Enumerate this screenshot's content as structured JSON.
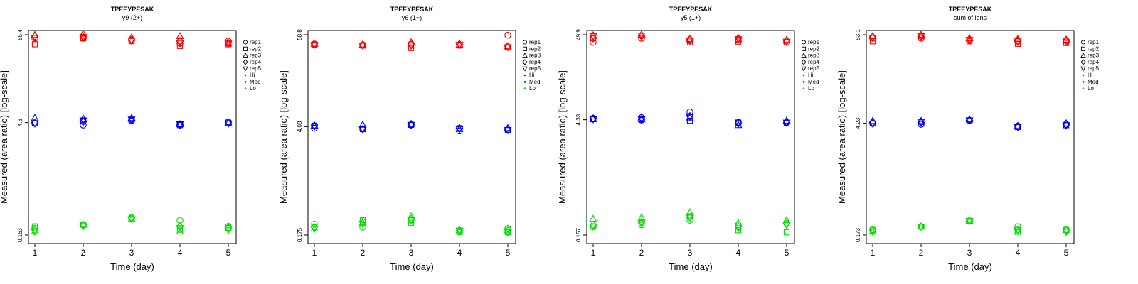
{
  "chart_data": [
    {
      "type": "scatter",
      "title": "TPEEYPESAK",
      "subtitle": "y9 (2+)",
      "xlabel": "Time (day)",
      "ylabel": "Measured (area ratio) [log-scale]",
      "y_scale": "log",
      "x_ticks": [
        "1",
        "2",
        "3",
        "4",
        "5"
      ],
      "y_ticks": [
        "0.163",
        "4.3",
        "55.4"
      ],
      "ylim": [
        0.163,
        55.4
      ],
      "groups": {
        "Hi": {
          "rep1": [
            50,
            50,
            47,
            43,
            46
          ],
          "rep2": [
            42,
            50,
            46,
            40,
            42
          ],
          "rep3": [
            55,
            57,
            51,
            53,
            43
          ],
          "rep4": [
            53,
            52,
            48,
            46,
            44
          ],
          "rep5": [
            51,
            52,
            47,
            44,
            43
          ]
        },
        "Med": {
          "rep1": [
            4.2,
            4.0,
            4.5,
            4.1,
            4.4
          ],
          "rep2": [
            4.2,
            4.5,
            4.8,
            4.0,
            4.2
          ],
          "rep3": [
            4.9,
            4.8,
            4.9,
            4.1,
            4.3
          ],
          "rep4": [
            4.3,
            4.4,
            4.6,
            4.0,
            4.3
          ],
          "rep5": [
            4.2,
            4.6,
            4.7,
            4.1,
            4.2
          ]
        },
        "Lo": {
          "rep1": [
            0.2,
            0.22,
            0.27,
            0.25,
            0.21
          ],
          "rep2": [
            0.21,
            0.22,
            0.26,
            0.19,
            0.2
          ],
          "rep3": [
            0.18,
            0.22,
            0.26,
            0.18,
            0.21
          ],
          "rep4": [
            0.19,
            0.22,
            0.27,
            0.21,
            0.2
          ],
          "rep5": [
            0.18,
            0.21,
            0.26,
            0.2,
            0.19
          ]
        }
      }
    },
    {
      "type": "scatter",
      "title": "TPEEYPESAK",
      "subtitle": "y6 (1+)",
      "xlabel": "Time (day)",
      "ylabel": "Measured (area ratio) [log-scale]",
      "y_scale": "log",
      "x_ticks": [
        "1",
        "2",
        "3",
        "4",
        "5"
      ],
      "y_ticks": [
        "0.175",
        "4.08",
        "58.8"
      ],
      "ylim": [
        0.175,
        58.8
      ],
      "groups": {
        "Hi": {
          "rep1": [
            45,
            44,
            45,
            44,
            58
          ],
          "rep2": [
            44,
            43,
            40,
            43,
            41
          ],
          "rep3": [
            45,
            44,
            47,
            44,
            42
          ],
          "rep4": [
            45,
            44,
            44,
            45,
            42
          ],
          "rep5": [
            44,
            43,
            43,
            44,
            41
          ]
        },
        "Med": {
          "rep1": [
            3.9,
            3.8,
            4.3,
            3.6,
            3.7
          ],
          "rep2": [
            4.2,
            3.8,
            4.3,
            3.9,
            3.7
          ],
          "rep3": [
            4.2,
            4.3,
            4.4,
            3.8,
            3.9
          ],
          "rep4": [
            4.2,
            3.8,
            4.3,
            3.9,
            3.8
          ],
          "rep5": [
            4.1,
            3.8,
            4.3,
            3.8,
            3.7
          ]
        },
        "Lo": {
          "rep1": [
            0.24,
            0.22,
            0.27,
            0.2,
            0.21
          ],
          "rep2": [
            0.22,
            0.27,
            0.25,
            0.19,
            0.19
          ],
          "rep3": [
            0.21,
            0.25,
            0.3,
            0.2,
            0.2
          ],
          "rep4": [
            0.22,
            0.26,
            0.28,
            0.2,
            0.21
          ],
          "rep5": [
            0.21,
            0.24,
            0.27,
            0.2,
            0.19
          ]
        }
      }
    },
    {
      "type": "scatter",
      "title": "TPEEYPESAK",
      "subtitle": "y5 (1+)",
      "xlabel": "Time (day)",
      "ylabel": "Measured (area ratio) [log-scale]",
      "y_scale": "log",
      "x_ticks": [
        "1",
        "2",
        "3",
        "4",
        "5"
      ],
      "y_ticks": [
        "0.157",
        "4.33",
        "49.9"
      ],
      "ylim": [
        0.157,
        49.9
      ],
      "groups": {
        "Hi": {
          "rep1": [
            40,
            45,
            42,
            43,
            40
          ],
          "rep2": [
            45,
            46,
            40,
            41,
            40
          ],
          "rep3": [
            49,
            50,
            44,
            44,
            43
          ],
          "rep4": [
            45,
            48,
            44,
            45,
            42
          ],
          "rep5": [
            48,
            49,
            42,
            44,
            41
          ]
        },
        "Med": {
          "rep1": [
            4.5,
            4.6,
            5.4,
            4.0,
            4.0
          ],
          "rep2": [
            4.4,
            4.3,
            4.2,
            4.0,
            3.9
          ],
          "rep3": [
            4.4,
            4.4,
            4.6,
            3.7,
            4.2
          ],
          "rep4": [
            4.5,
            4.3,
            4.8,
            3.9,
            4.0
          ],
          "rep5": [
            4.4,
            4.4,
            4.7,
            3.9,
            4.0
          ]
        },
        "Lo": {
          "rep1": [
            0.2,
            0.22,
            0.24,
            0.21,
            0.22
          ],
          "rep2": [
            0.2,
            0.21,
            0.27,
            0.18,
            0.17
          ],
          "rep3": [
            0.25,
            0.26,
            0.3,
            0.22,
            0.24
          ],
          "rep4": [
            0.21,
            0.23,
            0.26,
            0.2,
            0.22
          ],
          "rep5": [
            0.2,
            0.22,
            0.26,
            0.19,
            0.21
          ]
        }
      }
    },
    {
      "type": "scatter",
      "title": "TPEEYPESAK",
      "subtitle": "sum of ions",
      "xlabel": "Time (day)",
      "ylabel": "Measured (area ratio) [log-scale]",
      "y_scale": "log",
      "x_ticks": [
        "1",
        "2",
        "3",
        "4",
        "5"
      ],
      "y_ticks": [
        "0.173",
        "4.23",
        "53.1"
      ],
      "ylim": [
        0.173,
        53.1
      ],
      "groups": {
        "Hi": {
          "rep1": [
            48,
            48,
            45,
            44,
            45
          ],
          "rep2": [
            44,
            49,
            44,
            41,
            42
          ],
          "rep3": [
            51,
            53,
            48,
            47,
            46
          ],
          "rep4": [
            50,
            50,
            46,
            45,
            44
          ],
          "rep5": [
            49,
            51,
            46,
            44,
            43
          ]
        },
        "Med": {
          "rep1": [
            4.2,
            4.1,
            4.6,
            3.9,
            4.1
          ],
          "rep2": [
            4.2,
            4.2,
            4.6,
            3.8,
            4.0
          ],
          "rep3": [
            4.5,
            4.5,
            4.7,
            3.9,
            4.2
          ],
          "rep4": [
            4.3,
            4.3,
            4.6,
            3.9,
            4.1
          ],
          "rep5": [
            4.2,
            4.4,
            4.6,
            3.8,
            4.0
          ]
        },
        "Lo": {
          "rep1": [
            0.2,
            0.22,
            0.26,
            0.22,
            0.2
          ],
          "rep2": [
            0.2,
            0.22,
            0.26,
            0.19,
            0.2
          ],
          "rep3": [
            0.19,
            0.22,
            0.26,
            0.19,
            0.2
          ],
          "rep4": [
            0.2,
            0.22,
            0.26,
            0.2,
            0.2
          ],
          "rep5": [
            0.19,
            0.22,
            0.26,
            0.2,
            0.19
          ]
        }
      }
    }
  ],
  "legend": {
    "entries": [
      {
        "label": "rep1",
        "shape": "circle"
      },
      {
        "label": "rep2",
        "shape": "square"
      },
      {
        "label": "rep3",
        "shape": "triangle-up"
      },
      {
        "label": "rep4",
        "shape": "diamond"
      },
      {
        "label": "rep5",
        "shape": "triangle-down"
      },
      {
        "label": "Hi",
        "shape": "dot",
        "color": "#ff0000"
      },
      {
        "label": "Med",
        "shape": "dot",
        "color": "#0000ff"
      },
      {
        "label": "Lo",
        "shape": "dot",
        "color": "#00dd00"
      }
    ]
  },
  "colors": {
    "Hi": "#ff0000",
    "Med": "#0000ff",
    "Lo": "#00dd00",
    "axis": "#000000"
  }
}
